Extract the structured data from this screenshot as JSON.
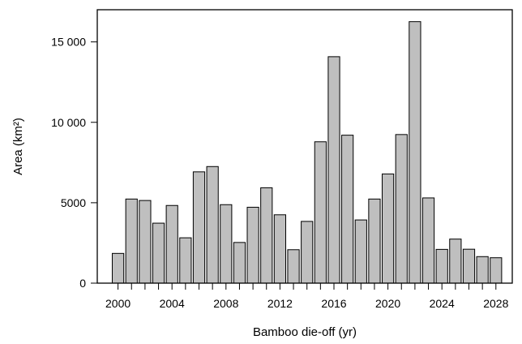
{
  "chart_data": {
    "type": "bar",
    "xlabel": "Bamboo die-off (yr)",
    "ylabel": "Area (km²)",
    "ylim": [
      0,
      17000
    ],
    "xlim": [
      1999,
      2029
    ],
    "grid": false,
    "bar_color": "#bfbfbf",
    "edge_color": "#000000",
    "x_ticks": [
      2000,
      2004,
      2008,
      2012,
      2016,
      2020,
      2024,
      2028
    ],
    "x_tick_labels": [
      "2000",
      "2004",
      "2008",
      "2012",
      "2016",
      "2020",
      "2024",
      "2028"
    ],
    "y_ticks": [
      0,
      5000,
      10000,
      15000
    ],
    "y_tick_labels": [
      "0",
      "5000",
      "10 000",
      "15 000"
    ],
    "categories": [
      2000,
      2001,
      2002,
      2003,
      2004,
      2005,
      2006,
      2007,
      2008,
      2009,
      2010,
      2011,
      2012,
      2013,
      2014,
      2015,
      2016,
      2017,
      2018,
      2019,
      2020,
      2021,
      2022,
      2023,
      2024,
      2025,
      2026,
      2027,
      2028
    ],
    "values": [
      1850,
      5230,
      5140,
      3730,
      4830,
      2820,
      6920,
      7250,
      4880,
      2530,
      4720,
      5930,
      4250,
      2080,
      3840,
      8790,
      14080,
      9200,
      3930,
      5230,
      6790,
      9240,
      16260,
      5300,
      2100,
      2740,
      2110,
      1650,
      1580
    ]
  }
}
